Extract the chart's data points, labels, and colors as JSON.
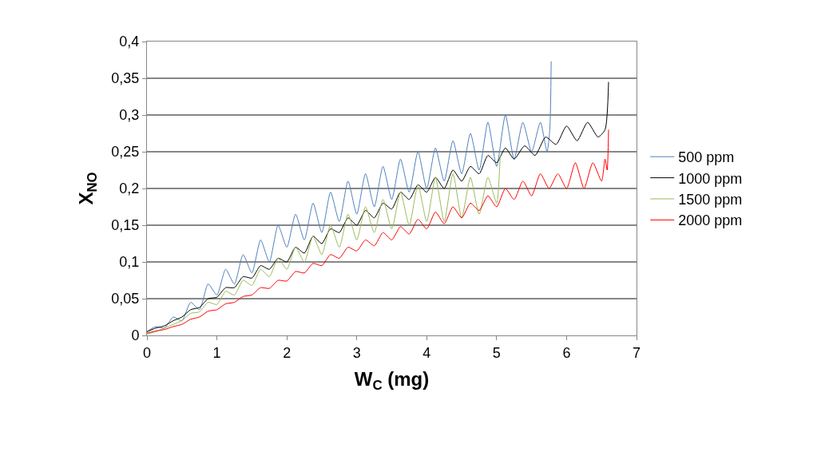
{
  "chart_data": {
    "type": "line",
    "xlabel": "W$_{C}$ (mg)",
    "ylabel": "X$_{NO}$",
    "xlim": [
      0,
      7
    ],
    "xticks": [
      0,
      1,
      2,
      3,
      4,
      5,
      6,
      7
    ],
    "ylim": [
      0,
      0.4
    ],
    "yticks": [
      0,
      {
        "value": 0.05,
        "label": "0,05"
      },
      {
        "value": 0.1,
        "label": "0,1"
      },
      {
        "value": 0.15,
        "label": "0,15"
      },
      {
        "value": 0.2,
        "label": "0,2"
      },
      {
        "value": 0.25,
        "label": "0,25"
      },
      {
        "value": 0.3,
        "label": "0,3"
      },
      {
        "value": 0.35,
        "label": "0,35"
      },
      {
        "value": 0.4,
        "label": "0,4"
      }
    ],
    "grid": "y",
    "legend": "right",
    "marker": "none",
    "line_style": "solid",
    "series": [
      {
        "name": "500 ppm",
        "color": "#4f81bd",
        "x": [
          0,
          0.125,
          0.25,
          0.375,
          0.5,
          0.625,
          0.75,
          0.875,
          1.0,
          1.125,
          1.25,
          1.375,
          1.5,
          1.625,
          1.75,
          1.875,
          2.0,
          2.125,
          2.25,
          2.375,
          2.5,
          2.625,
          2.75,
          2.875,
          3.0,
          3.125,
          3.25,
          3.375,
          3.5,
          3.625,
          3.75,
          3.875,
          4.0,
          4.125,
          4.25,
          4.375,
          4.5,
          4.625,
          4.75,
          4.875,
          5.0,
          5.125,
          5.25,
          5.375,
          5.5,
          5.625,
          5.72,
          5.76,
          5.78
        ],
        "values": [
          0.005,
          0.012,
          0.01,
          0.025,
          0.02,
          0.045,
          0.035,
          0.07,
          0.055,
          0.09,
          0.07,
          0.11,
          0.085,
          0.13,
          0.1,
          0.15,
          0.12,
          0.165,
          0.13,
          0.18,
          0.14,
          0.195,
          0.155,
          0.21,
          0.165,
          0.22,
          0.175,
          0.23,
          0.185,
          0.24,
          0.195,
          0.25,
          0.2,
          0.255,
          0.21,
          0.265,
          0.22,
          0.275,
          0.225,
          0.29,
          0.23,
          0.3,
          0.24,
          0.29,
          0.25,
          0.29,
          0.25,
          0.28,
          0.373
        ]
      },
      {
        "name": "1000 ppm",
        "color": "#000000",
        "x": [
          0,
          0.125,
          0.25,
          0.375,
          0.5,
          0.625,
          0.75,
          0.875,
          1.0,
          1.125,
          1.25,
          1.375,
          1.5,
          1.625,
          1.75,
          1.875,
          2.0,
          2.125,
          2.25,
          2.375,
          2.5,
          2.625,
          2.75,
          2.875,
          3.0,
          3.125,
          3.25,
          3.375,
          3.5,
          3.625,
          3.75,
          3.875,
          4.0,
          4.125,
          4.25,
          4.375,
          4.5,
          4.625,
          4.75,
          4.875,
          5.0,
          5.125,
          5.25,
          5.4,
          5.55,
          5.7,
          5.85,
          6.0,
          6.15,
          6.3,
          6.45,
          6.55,
          6.6
        ],
        "values": [
          0.005,
          0.01,
          0.013,
          0.02,
          0.025,
          0.035,
          0.038,
          0.05,
          0.052,
          0.065,
          0.065,
          0.08,
          0.078,
          0.095,
          0.09,
          0.105,
          0.1,
          0.12,
          0.112,
          0.135,
          0.125,
          0.145,
          0.14,
          0.16,
          0.15,
          0.17,
          0.16,
          0.18,
          0.172,
          0.195,
          0.185,
          0.205,
          0.195,
          0.215,
          0.2,
          0.225,
          0.21,
          0.23,
          0.22,
          0.245,
          0.235,
          0.255,
          0.24,
          0.258,
          0.245,
          0.27,
          0.26,
          0.285,
          0.265,
          0.29,
          0.27,
          0.28,
          0.345
        ]
      },
      {
        "name": "1500 ppm",
        "color": "#9bbb59",
        "x": [
          0,
          0.125,
          0.25,
          0.375,
          0.5,
          0.625,
          0.75,
          0.875,
          1.0,
          1.125,
          1.25,
          1.375,
          1.5,
          1.625,
          1.75,
          1.875,
          2.0,
          2.125,
          2.25,
          2.375,
          2.5,
          2.625,
          2.75,
          2.875,
          3.0,
          3.125,
          3.25,
          3.375,
          3.5,
          3.625,
          3.75,
          3.875,
          4.0,
          4.125,
          4.25,
          4.375,
          4.5,
          4.625,
          4.75,
          4.875,
          5.0,
          5.05
        ],
        "values": [
          0.002,
          0.005,
          0.01,
          0.015,
          0.02,
          0.03,
          0.032,
          0.045,
          0.042,
          0.06,
          0.055,
          0.075,
          0.068,
          0.09,
          0.08,
          0.105,
          0.09,
          0.12,
          0.1,
          0.135,
          0.11,
          0.15,
          0.12,
          0.165,
          0.13,
          0.175,
          0.14,
          0.185,
          0.145,
          0.195,
          0.15,
          0.205,
          0.155,
          0.215,
          0.155,
          0.22,
          0.16,
          0.215,
          0.165,
          0.215,
          0.18,
          0.245
        ]
      },
      {
        "name": "2000 ppm",
        "color": "#ff0000",
        "x": [
          0,
          0.125,
          0.25,
          0.375,
          0.5,
          0.625,
          0.75,
          0.875,
          1.0,
          1.125,
          1.25,
          1.375,
          1.5,
          1.625,
          1.75,
          1.875,
          2.0,
          2.125,
          2.25,
          2.375,
          2.5,
          2.625,
          2.75,
          2.875,
          3.0,
          3.125,
          3.25,
          3.375,
          3.5,
          3.625,
          3.75,
          3.875,
          4.0,
          4.125,
          4.25,
          4.375,
          4.5,
          4.625,
          4.75,
          4.875,
          5.0,
          5.125,
          5.25,
          5.375,
          5.5,
          5.625,
          5.75,
          5.875,
          6.0,
          6.125,
          6.25,
          6.375,
          6.5,
          6.55,
          6.58,
          6.6
        ],
        "values": [
          0.003,
          0.006,
          0.008,
          0.012,
          0.015,
          0.022,
          0.025,
          0.033,
          0.035,
          0.043,
          0.045,
          0.053,
          0.055,
          0.065,
          0.064,
          0.075,
          0.074,
          0.087,
          0.085,
          0.098,
          0.095,
          0.11,
          0.105,
          0.12,
          0.115,
          0.13,
          0.122,
          0.14,
          0.13,
          0.148,
          0.138,
          0.158,
          0.145,
          0.168,
          0.152,
          0.175,
          0.16,
          0.18,
          0.17,
          0.19,
          0.175,
          0.2,
          0.185,
          0.21,
          0.19,
          0.22,
          0.2,
          0.22,
          0.2,
          0.235,
          0.2,
          0.235,
          0.21,
          0.24,
          0.225,
          0.28
        ]
      }
    ]
  }
}
